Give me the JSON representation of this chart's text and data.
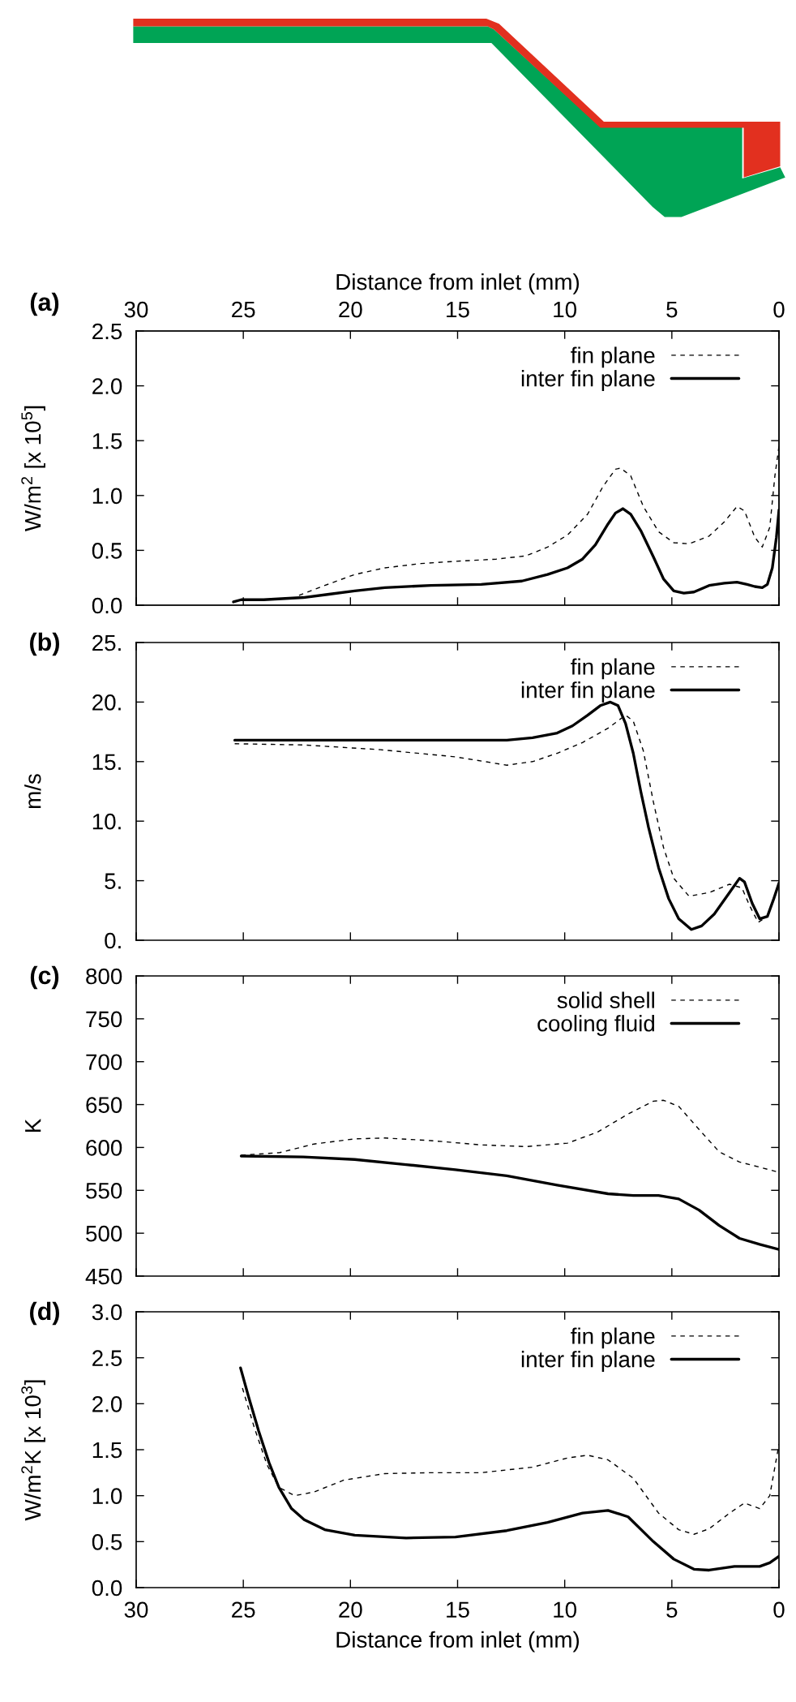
{
  "chart_data": [
    {
      "type": "line",
      "title": "(a)",
      "x2label": "Distance from inlet (mm)",
      "ylabel": "W/m$^{2}$ [x 10$^{5}$]",
      "xlim": [
        30,
        0
      ],
      "xticks": [
        30,
        25,
        20,
        15,
        10,
        5,
        0
      ],
      "x2lim": [
        30,
        0
      ],
      "x2ticks": [
        30,
        25,
        20,
        15,
        10,
        5,
        0
      ],
      "ylim": [
        0,
        2.5
      ],
      "yticks": [
        {
          "value": 0,
          "label": "0.0"
        },
        0.5,
        {
          "value": 1,
          "label": "1.0"
        },
        1.5,
        {
          "value": 2,
          "label": "2.0"
        },
        2.5
      ],
      "tick_labels": "y",
      "legend": "top right",
      "series": [
        {
          "name": "fin plane",
          "color": "#000000",
          "line_style": "dashed",
          "x": [
            22.4,
            21.2,
            19.8,
            18.4,
            16.7,
            15.1,
            13.2,
            11.8,
            10.8,
            9.87,
            8.93,
            8.22,
            7.63,
            7.39,
            6.92,
            6.33,
            5.62,
            4.91,
            4.2,
            3.26,
            2.55,
            1.96,
            1.61,
            1.13,
            0.78,
            0.43,
            0.19,
            0
          ],
          "values": [
            0.09,
            0.18,
            0.28,
            0.34,
            0.38,
            0.4,
            0.42,
            0.45,
            0.53,
            0.64,
            0.83,
            1.08,
            1.24,
            1.25,
            1.18,
            0.9,
            0.67,
            0.57,
            0.56,
            0.63,
            0.76,
            0.9,
            0.86,
            0.62,
            0.53,
            0.71,
            1.18,
            1.45
          ]
        },
        {
          "name": "inter fin plane",
          "color": "#000000",
          "line_style": "solid",
          "x": [
            25.46,
            25.1,
            24.05,
            22.2,
            21.0,
            19.8,
            18.4,
            16.25,
            13.9,
            12.0,
            10.8,
            9.87,
            9.17,
            8.57,
            7.98,
            7.63,
            7.28,
            6.92,
            6.45,
            5.86,
            5.39,
            4.91,
            4.44,
            3.97,
            3.26,
            2.55,
            1.96,
            1.49,
            1.13,
            0.78,
            0.54,
            0.31,
            0.12,
            0
          ],
          "values": [
            0.03,
            0.05,
            0.05,
            0.07,
            0.1,
            0.13,
            0.16,
            0.18,
            0.19,
            0.22,
            0.28,
            0.34,
            0.42,
            0.55,
            0.74,
            0.84,
            0.88,
            0.83,
            0.68,
            0.44,
            0.24,
            0.13,
            0.11,
            0.12,
            0.18,
            0.2,
            0.21,
            0.19,
            0.17,
            0.16,
            0.19,
            0.34,
            0.62,
            0.87
          ]
        }
      ]
    },
    {
      "type": "line",
      "title": "(b)",
      "ylabel": "m/s",
      "xlim": [
        30,
        0
      ],
      "xticks": [
        30,
        25,
        20,
        15,
        10,
        5,
        0
      ],
      "ylim": [
        0,
        25
      ],
      "yticks": [
        {
          "value": 0,
          "label": "0."
        },
        {
          "value": 5,
          "label": "5."
        },
        {
          "value": 10,
          "label": "10."
        },
        {
          "value": 15,
          "label": "15."
        },
        {
          "value": 20,
          "label": "20."
        },
        {
          "value": 25,
          "label": "25."
        }
      ],
      "tick_labels": "y",
      "legend": "top right",
      "series": [
        {
          "name": "fin plane",
          "color": "#000000",
          "line_style": "dashed",
          "x": [
            25.4,
            22.2,
            18.6,
            15.1,
            12.7,
            11.5,
            10.35,
            9.17,
            7.98,
            7.16,
            6.8,
            6.33,
            5.86,
            5.39,
            4.91,
            4.2,
            3.26,
            2.31,
            1.73,
            1.37,
            0.97,
            0.54,
            0
          ],
          "values": [
            16.5,
            16.4,
            16.0,
            15.4,
            14.7,
            15.0,
            15.7,
            16.6,
            17.8,
            18.9,
            18.4,
            15.9,
            11.6,
            7.8,
            5.2,
            3.7,
            4.0,
            4.7,
            4.4,
            2.9,
            1.5,
            2.0,
            4.8
          ]
        },
        {
          "name": "inter fin plane",
          "color": "#000000",
          "line_style": "solid",
          "x": [
            25.4,
            22.2,
            17.4,
            12.7,
            11.5,
            10.35,
            9.64,
            8.93,
            8.34,
            7.87,
            7.51,
            7.16,
            6.8,
            6.45,
            6.09,
            5.62,
            5.15,
            4.68,
            4.09,
            3.61,
            3.02,
            2.31,
            1.84,
            1.61,
            1.25,
            0.9,
            0.54,
            0.24,
            0
          ],
          "values": [
            16.8,
            16.8,
            16.8,
            16.8,
            17.0,
            17.4,
            18.0,
            18.9,
            19.7,
            20.0,
            19.7,
            18.2,
            15.7,
            12.5,
            9.5,
            6.1,
            3.5,
            1.8,
            0.9,
            1.2,
            2.2,
            4.0,
            5.2,
            4.9,
            3.1,
            1.8,
            2.0,
            3.5,
            4.8
          ]
        }
      ]
    },
    {
      "type": "line",
      "title": "(c)",
      "ylabel": "K",
      "xlim": [
        30,
        0
      ],
      "xticks": [
        30,
        25,
        20,
        15,
        10,
        5,
        0
      ],
      "ylim": [
        450,
        800
      ],
      "yticks": [
        450,
        500,
        550,
        600,
        650,
        700,
        750,
        800
      ],
      "tick_labels": "y",
      "legend": "top right",
      "series": [
        {
          "name": "solid shell",
          "color": "#000000",
          "line_style": "dashed",
          "x": [
            25.1,
            23.3,
            21.7,
            19.8,
            18.4,
            16.25,
            13.9,
            11.8,
            9.87,
            8.46,
            7.04,
            5.86,
            5.39,
            4.68,
            3.73,
            2.79,
            1.84,
            0.9,
            0
          ],
          "values": [
            591,
            594,
            604,
            610,
            611,
            608,
            603,
            601,
            605,
            618,
            639,
            654,
            655,
            648,
            621,
            595,
            583,
            577,
            571
          ]
        },
        {
          "name": "cooling fluid",
          "color": "#000000",
          "line_style": "solid",
          "x": [
            25.1,
            22.2,
            19.8,
            17.4,
            15.1,
            12.7,
            10.35,
            7.98,
            6.8,
            5.62,
            4.68,
            3.73,
            2.79,
            1.84,
            0.9,
            0
          ],
          "values": [
            590,
            589,
            586,
            580,
            574,
            567,
            556,
            546,
            544,
            544,
            540,
            527,
            509,
            494,
            487,
            481
          ]
        }
      ]
    },
    {
      "type": "line",
      "title": "(d)",
      "xlabel": "Distance from inlet (mm)",
      "ylabel": "W/m$^{2}$K [x 10$^{3}$]",
      "xlim": [
        30,
        0
      ],
      "xticks": [
        30,
        25,
        20,
        15,
        10,
        5,
        0
      ],
      "ylim": [
        0,
        3
      ],
      "yticks": [
        {
          "value": 0,
          "label": "0.0"
        },
        0.5,
        {
          "value": 1,
          "label": "1.0"
        },
        1.5,
        {
          "value": 2,
          "label": "2.0"
        },
        2.5,
        {
          "value": 3,
          "label": "3.0"
        }
      ],
      "legend": "top right",
      "series": [
        {
          "name": "fin plane",
          "color": "#000000",
          "line_style": "dashed",
          "x": [
            25.04,
            24.5,
            23.9,
            23.34,
            22.6,
            21.7,
            20.3,
            18.4,
            16.25,
            13.9,
            11.5,
            9.87,
            8.93,
            7.98,
            6.8,
            5.62,
            4.68,
            3.97,
            3.26,
            2.31,
            1.61,
            0.9,
            0.43,
            0
          ],
          "values": [
            2.17,
            1.75,
            1.34,
            1.09,
            1.0,
            1.04,
            1.17,
            1.24,
            1.25,
            1.25,
            1.31,
            1.41,
            1.44,
            1.39,
            1.19,
            0.81,
            0.63,
            0.58,
            0.64,
            0.81,
            0.92,
            0.86,
            1.0,
            1.56
          ]
        },
        {
          "name": "inter fin plane",
          "color": "#000000",
          "line_style": "solid",
          "x": [
            25.13,
            24.76,
            24.28,
            23.8,
            23.34,
            22.75,
            22.16,
            21.2,
            19.8,
            17.4,
            15.1,
            12.7,
            10.8,
            9.17,
            7.98,
            7.04,
            5.86,
            4.91,
            3.97,
            3.26,
            2.08,
            0.9,
            0.43,
            0
          ],
          "values": [
            2.39,
            2.08,
            1.7,
            1.36,
            1.09,
            0.86,
            0.74,
            0.63,
            0.57,
            0.54,
            0.55,
            0.62,
            0.71,
            0.81,
            0.84,
            0.77,
            0.5,
            0.31,
            0.2,
            0.19,
            0.23,
            0.23,
            0.27,
            0.34
          ]
        }
      ]
    }
  ]
}
